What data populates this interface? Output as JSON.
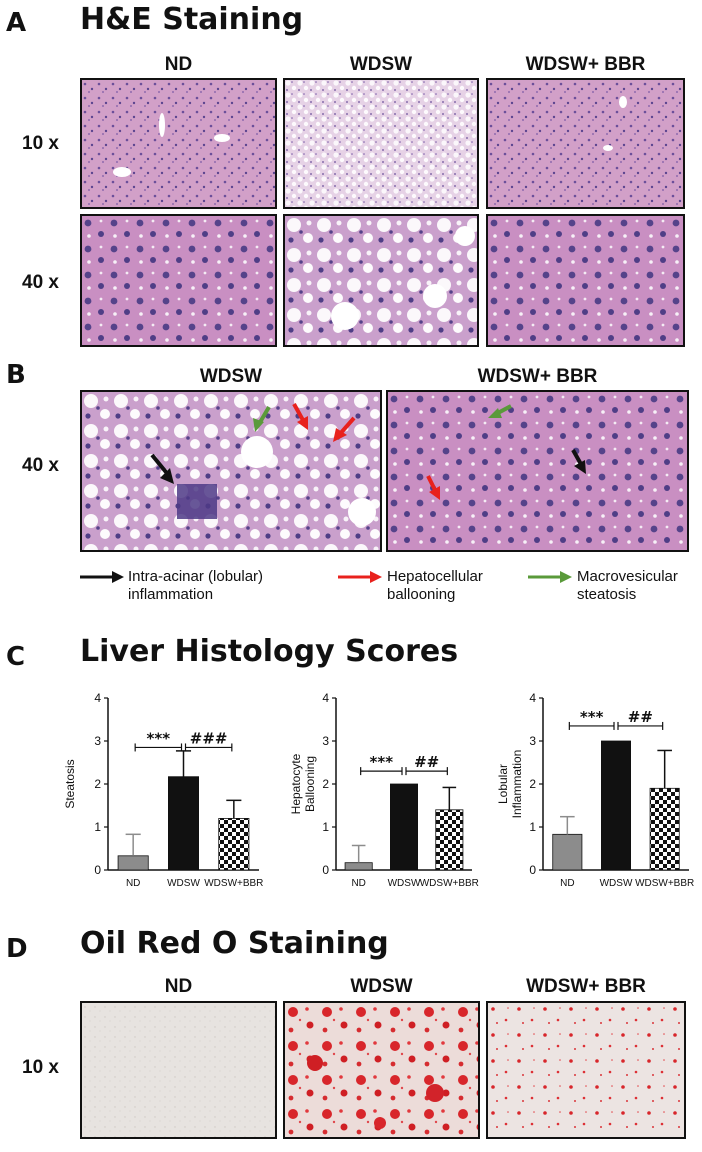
{
  "panelA": {
    "letter": "A",
    "title": "H&E Staining",
    "columns": [
      "ND",
      "WDSW",
      "WDSW+ BBR"
    ],
    "rows": [
      "10 x",
      "40 x"
    ]
  },
  "panelB": {
    "letter": "B",
    "columns": [
      "WDSW",
      "WDSW+ BBR"
    ],
    "row": "40 x",
    "legend": [
      {
        "color": "#111111",
        "line1": "Intra-acinar (lobular)",
        "line2": "inflammation"
      },
      {
        "color": "#e8211d",
        "line1": "Hepatocellular",
        "line2": "ballooning"
      },
      {
        "color": "#5a9a3a",
        "line1": "Macrovesicular",
        "line2": "steatosis"
      }
    ]
  },
  "panelC": {
    "letter": "C",
    "title": "Liver Histology Scores"
  },
  "panelD": {
    "letter": "D",
    "title": "Oil Red O Staining",
    "columns": [
      "ND",
      "WDSW",
      "WDSW+ BBR"
    ],
    "row": "10 x"
  },
  "chart_data": [
    {
      "type": "bar",
      "ylabel": "Steatosis",
      "categories": [
        "ND",
        "WDSW",
        "WDSW+BBR"
      ],
      "values": [
        0.33,
        2.17,
        1.2
      ],
      "errors": [
        0.5,
        0.6,
        0.42
      ],
      "ylim": [
        0,
        4
      ],
      "yticks": [
        "0",
        "1",
        "2",
        "3",
        "4"
      ],
      "annotations": [
        {
          "text": "***",
          "between": [
            0,
            1
          ],
          "y": 2.85
        },
        {
          "text": "###",
          "between": [
            1,
            2
          ],
          "y": 2.85
        }
      ]
    },
    {
      "type": "bar",
      "ylabel": "Hepatocyte Ballooning",
      "ylabel_lines": [
        "Hepatocyte",
        "Ballooning"
      ],
      "categories": [
        "ND",
        "WDSW",
        "WDSW+BBR"
      ],
      "values": [
        0.17,
        2.0,
        1.4
      ],
      "errors": [
        0.4,
        0.0,
        0.52
      ],
      "ylim": [
        0,
        4
      ],
      "yticks": [
        "0",
        "1",
        "2",
        "3",
        "4"
      ],
      "annotations": [
        {
          "text": "***",
          "between": [
            0,
            1
          ],
          "y": 2.3
        },
        {
          "text": "##",
          "between": [
            1,
            2
          ],
          "y": 2.3
        }
      ]
    },
    {
      "type": "bar",
      "ylabel": "Lobular Inflammation",
      "ylabel_lines": [
        "Lobular",
        "Inflammation"
      ],
      "categories": [
        "ND",
        "WDSW",
        "WDSW+BBR"
      ],
      "values": [
        0.83,
        3.0,
        1.9
      ],
      "errors": [
        0.41,
        0.0,
        0.88
      ],
      "ylim": [
        0,
        4
      ],
      "yticks": [
        "0",
        "1",
        "2",
        "3",
        "4"
      ],
      "annotations": [
        {
          "text": "***",
          "between": [
            0,
            1
          ],
          "y": 3.35
        },
        {
          "text": "##",
          "between": [
            1,
            2
          ],
          "y": 3.35
        }
      ]
    }
  ]
}
